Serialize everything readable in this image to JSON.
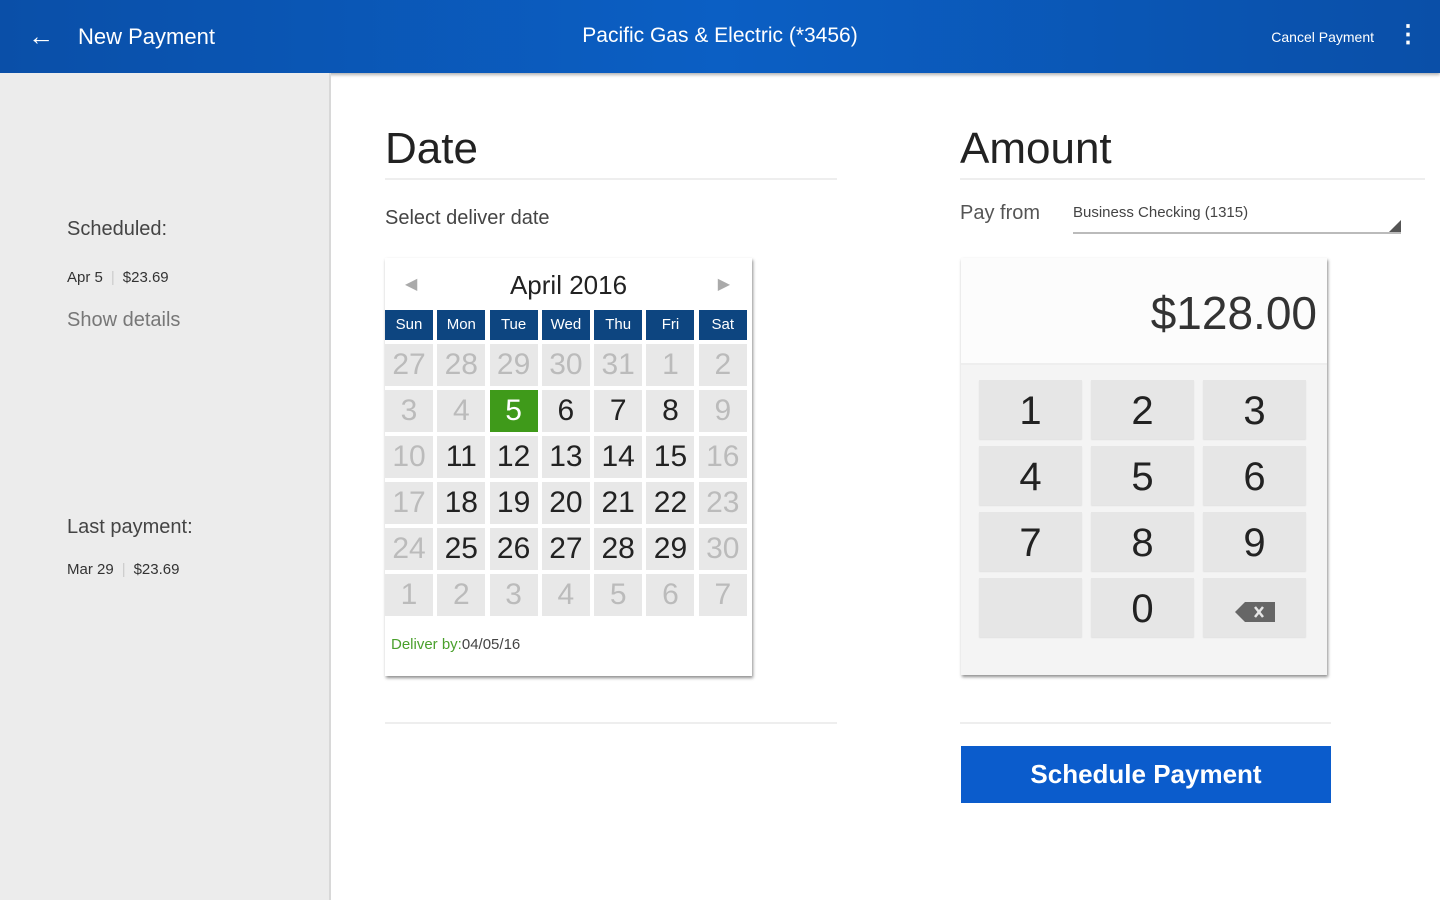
{
  "header": {
    "back_icon": "arrow-left-icon",
    "title": "New Payment",
    "payee": "Pacific Gas & Electric (*3456)",
    "cancel_label": "Cancel Payment",
    "more_icon": "more-vertical-icon",
    "color": "#0b5ccc"
  },
  "sidebar": {
    "scheduled_label": "Scheduled:",
    "scheduled_date": "Apr 5",
    "scheduled_amount": "$23.69",
    "show_details": "Show details",
    "last_label": "Last payment:",
    "last_date": "Mar 29",
    "last_amount": "$23.69"
  },
  "date": {
    "title": "Date",
    "subtitle": "Select deliver date",
    "calendar": {
      "month": "April 2016",
      "prev_icon": "triangle-left-icon",
      "next_icon": "triangle-right-icon",
      "weekdays": [
        "Sun",
        "Mon",
        "Tue",
        "Wed",
        "Thu",
        "Fri",
        "Sat"
      ],
      "days": [
        {
          "d": "27",
          "m": true
        },
        {
          "d": "28",
          "m": true
        },
        {
          "d": "29",
          "m": true
        },
        {
          "d": "30",
          "m": true
        },
        {
          "d": "31",
          "m": true
        },
        {
          "d": "1",
          "m": true
        },
        {
          "d": "2",
          "m": true
        },
        {
          "d": "3",
          "m": true
        },
        {
          "d": "4",
          "m": true
        },
        {
          "d": "5",
          "s": true
        },
        {
          "d": "6"
        },
        {
          "d": "7"
        },
        {
          "d": "8"
        },
        {
          "d": "9",
          "m": true
        },
        {
          "d": "10",
          "m": true
        },
        {
          "d": "11"
        },
        {
          "d": "12"
        },
        {
          "d": "13"
        },
        {
          "d": "14"
        },
        {
          "d": "15"
        },
        {
          "d": "16",
          "m": true
        },
        {
          "d": "17",
          "m": true
        },
        {
          "d": "18"
        },
        {
          "d": "19"
        },
        {
          "d": "20"
        },
        {
          "d": "21"
        },
        {
          "d": "22"
        },
        {
          "d": "23",
          "m": true
        },
        {
          "d": "24",
          "m": true
        },
        {
          "d": "25"
        },
        {
          "d": "26"
        },
        {
          "d": "27"
        },
        {
          "d": "28"
        },
        {
          "d": "29"
        },
        {
          "d": "30",
          "m": true
        },
        {
          "d": "1",
          "m": true
        },
        {
          "d": "2",
          "m": true
        },
        {
          "d": "3",
          "m": true
        },
        {
          "d": "4",
          "m": true
        },
        {
          "d": "5",
          "m": true
        },
        {
          "d": "6",
          "m": true
        },
        {
          "d": "7",
          "m": true
        }
      ],
      "deliver_label": "Deliver by:",
      "deliver_date": "04/05/16",
      "selected_color": "#3f9a1a",
      "header_color": "#0d4580"
    }
  },
  "amount": {
    "title": "Amount",
    "pay_from_label": "Pay from",
    "pay_from_value": "Business Checking (1315)",
    "display": "$128.00",
    "keys": [
      "1",
      "2",
      "3",
      "4",
      "5",
      "6",
      "7",
      "8",
      "9",
      "",
      "0",
      "backspace"
    ],
    "backspace_icon": "backspace-icon"
  },
  "schedule_button": "Schedule Payment"
}
